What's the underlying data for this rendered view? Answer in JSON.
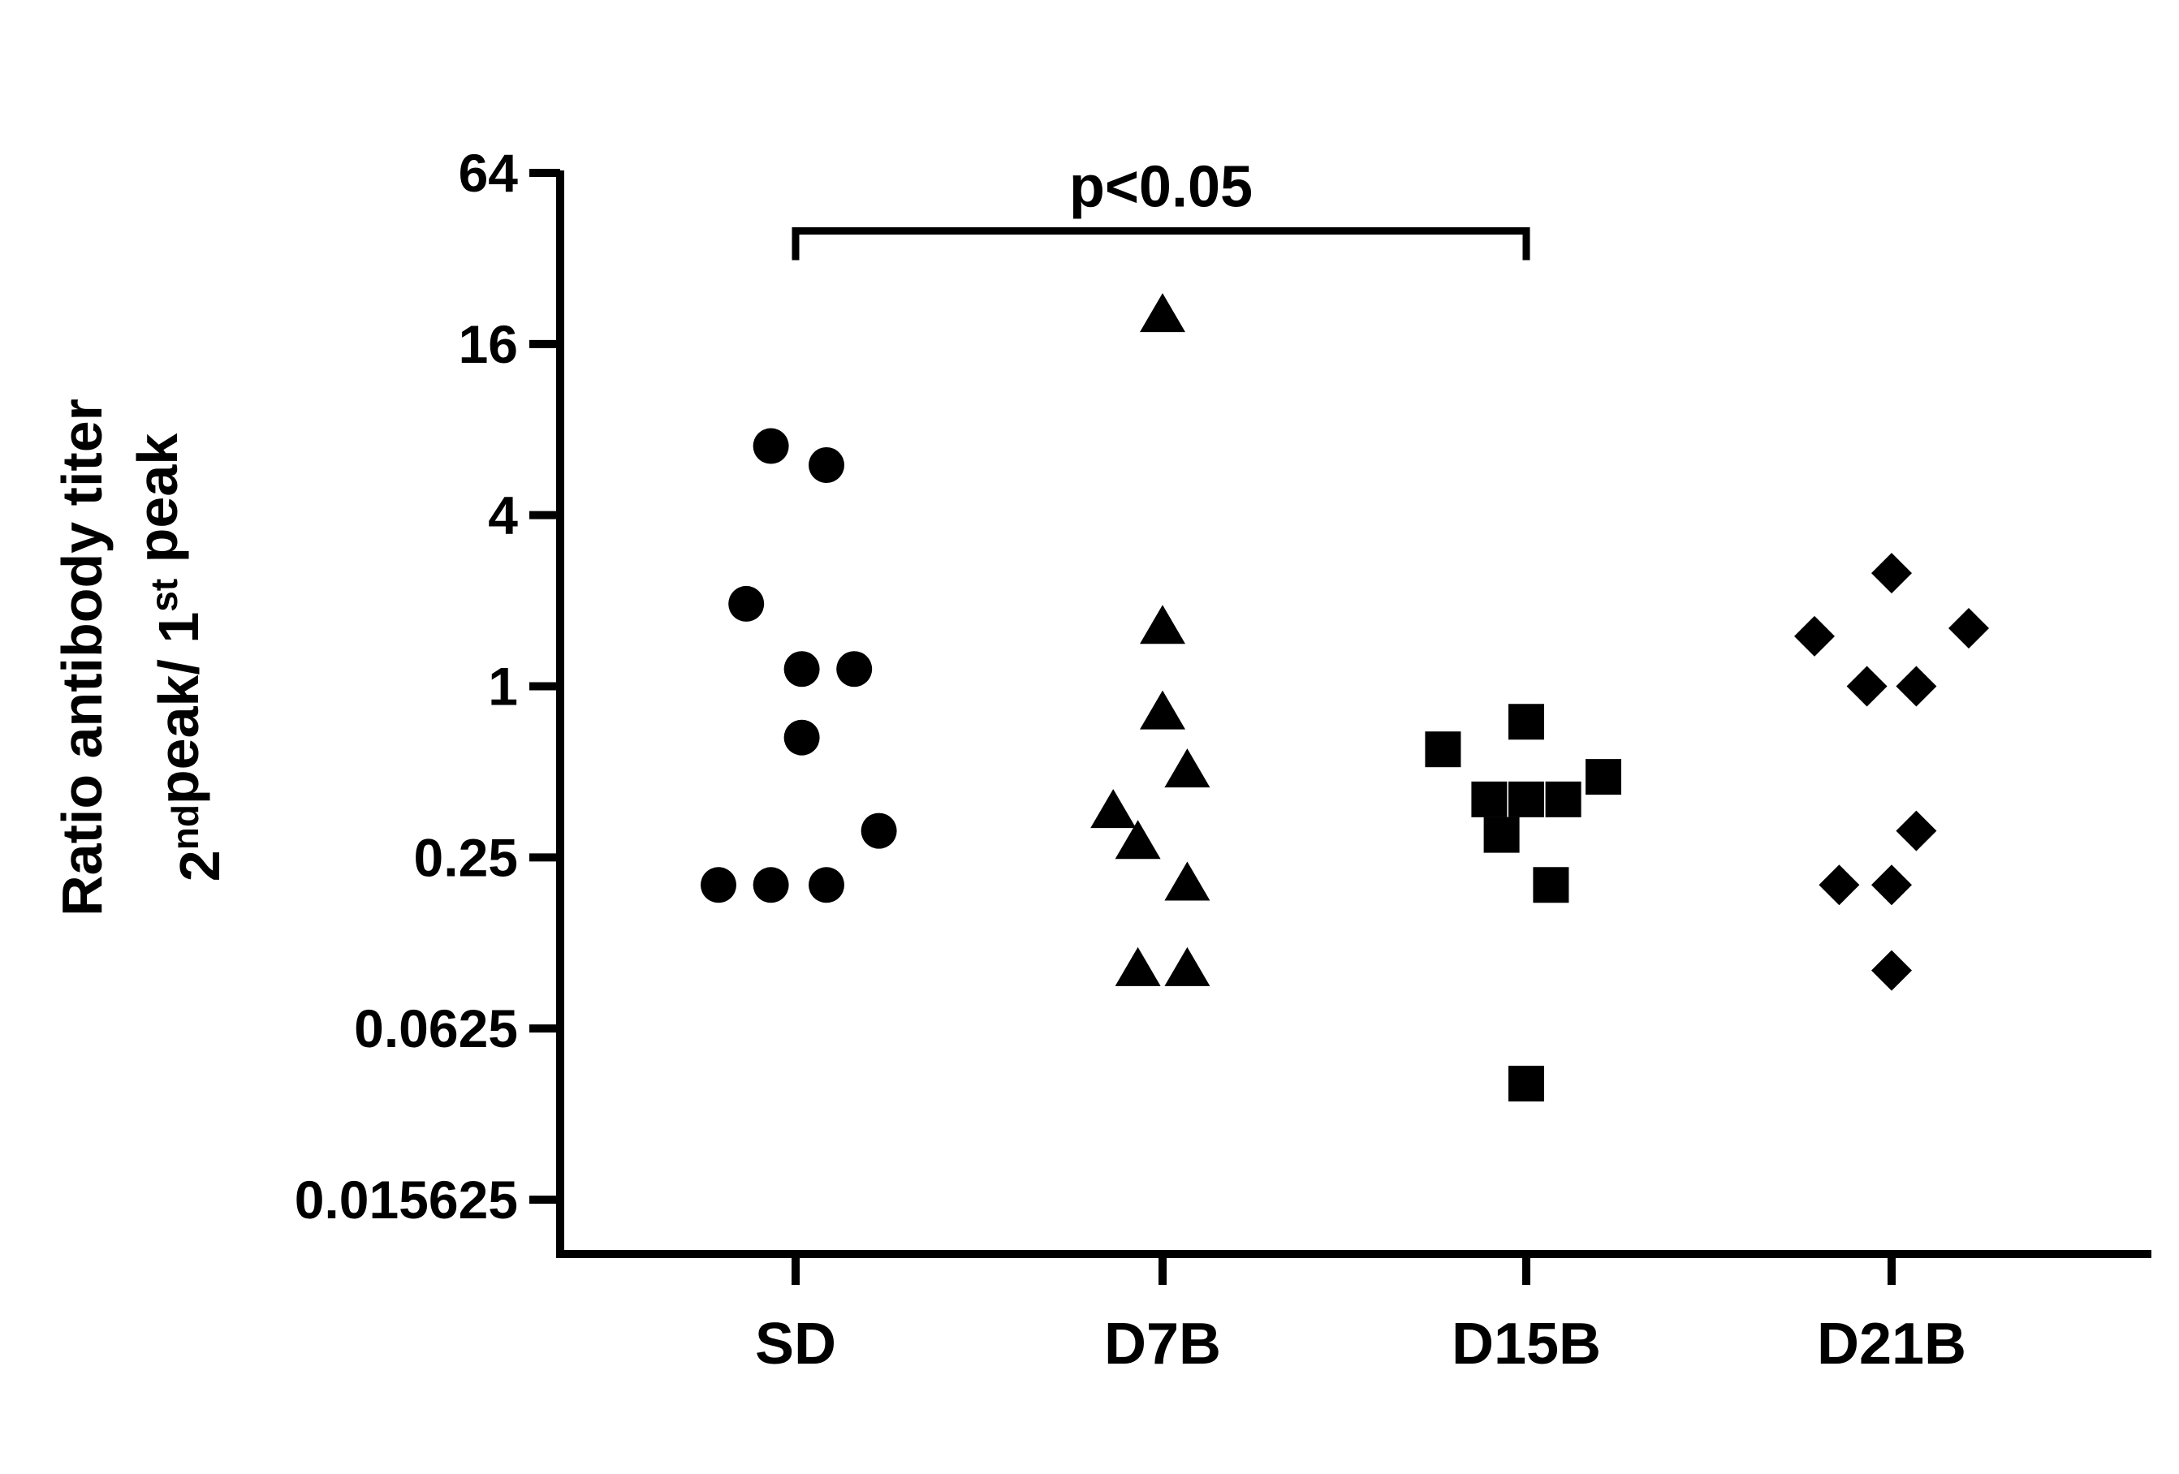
{
  "chart_data": {
    "type": "scatter",
    "title": "",
    "ylabel": {
      "line1": "Ratio antibody titer",
      "line2": [
        {
          "text": "2",
          "sup": false
        },
        {
          "text": "nd",
          "sup": true
        },
        {
          "text": "peak/ 1",
          "sup": false
        },
        {
          "text": "st",
          "sup": true
        },
        {
          "text": " peak",
          "sup": false
        }
      ]
    },
    "xlabel": "",
    "yscale": "log2",
    "ylim": [
      0.015625,
      64
    ],
    "yticks": [
      64,
      16,
      4,
      1,
      0.25,
      0.0625,
      0.015625
    ],
    "ytick_labels": [
      "64",
      "16",
      "4",
      "1",
      "0.25",
      "0.0625",
      "0.015625"
    ],
    "categories": [
      "SD",
      "D7B",
      "D15B",
      "D21B"
    ],
    "series": [
      {
        "category": "SD",
        "marker": "circle",
        "points": [
          {
            "offset": -0.08,
            "y": 7.0
          },
          {
            "offset": 0.1,
            "y": 6.0
          },
          {
            "offset": -0.16,
            "y": 1.95
          },
          {
            "offset": 0.02,
            "y": 1.15
          },
          {
            "offset": 0.19,
            "y": 1.15
          },
          {
            "offset": 0.02,
            "y": 0.66
          },
          {
            "offset": 0.27,
            "y": 0.31
          },
          {
            "offset": -0.25,
            "y": 0.2
          },
          {
            "offset": -0.08,
            "y": 0.2
          },
          {
            "offset": 0.1,
            "y": 0.2
          }
        ]
      },
      {
        "category": "D7B",
        "marker": "triangle",
        "points": [
          {
            "offset": 0.0,
            "y": 20.0
          },
          {
            "offset": 0.0,
            "y": 1.6
          },
          {
            "offset": 0.0,
            "y": 0.8
          },
          {
            "offset": 0.08,
            "y": 0.5
          },
          {
            "offset": -0.16,
            "y": 0.36
          },
          {
            "offset": -0.08,
            "y": 0.28
          },
          {
            "offset": 0.08,
            "y": 0.2
          },
          {
            "offset": -0.08,
            "y": 0.1
          },
          {
            "offset": 0.08,
            "y": 0.1
          }
        ]
      },
      {
        "category": "D15B",
        "marker": "square",
        "points": [
          {
            "offset": 0.0,
            "y": 0.75
          },
          {
            "offset": -0.27,
            "y": 0.6
          },
          {
            "offset": 0.25,
            "y": 0.48
          },
          {
            "offset": -0.12,
            "y": 0.4
          },
          {
            "offset": 0.0,
            "y": 0.4
          },
          {
            "offset": 0.12,
            "y": 0.4
          },
          {
            "offset": -0.08,
            "y": 0.3
          },
          {
            "offset": 0.08,
            "y": 0.2
          },
          {
            "offset": 0.0,
            "y": 0.04
          }
        ]
      },
      {
        "category": "D21B",
        "marker": "diamond",
        "points": [
          {
            "offset": 0.0,
            "y": 2.5
          },
          {
            "offset": -0.25,
            "y": 1.5
          },
          {
            "offset": 0.25,
            "y": 1.6
          },
          {
            "offset": -0.08,
            "y": 1.0
          },
          {
            "offset": 0.08,
            "y": 1.0
          },
          {
            "offset": 0.08,
            "y": 0.31
          },
          {
            "offset": -0.17,
            "y": 0.2
          },
          {
            "offset": 0.0,
            "y": 0.2
          },
          {
            "offset": 0.0,
            "y": 0.1
          }
        ]
      }
    ],
    "annotations": [
      {
        "type": "significance-bracket",
        "from": "SD",
        "to": "D15B",
        "text": "p<0.05",
        "y": 40
      }
    ],
    "grid": false,
    "legend": "none",
    "colors": {
      "marks": "#000000",
      "background": "#ffffff"
    }
  }
}
